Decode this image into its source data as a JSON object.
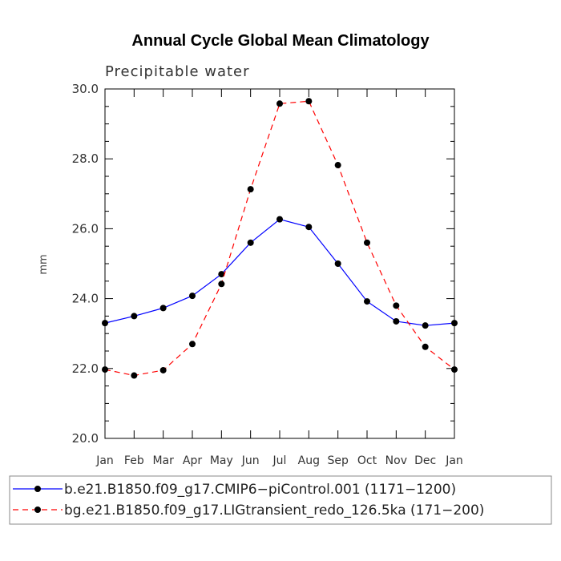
{
  "chart_data": {
    "type": "line",
    "title": "Annual Cycle Global Mean Climatology",
    "subtitle": "Precipitable water",
    "ylabel": "mm",
    "xlabel": "",
    "ylim": [
      20.0,
      30.0
    ],
    "ytick_values": [
      20.0,
      22.0,
      24.0,
      26.0,
      28.0,
      30.0
    ],
    "ytick_labels": [
      "20.0",
      "22.0",
      "24.0",
      "26.0",
      "28.0",
      "30.0"
    ],
    "categories": [
      "Jan",
      "Feb",
      "Mar",
      "Apr",
      "May",
      "Jun",
      "Jul",
      "Aug",
      "Sep",
      "Oct",
      "Nov",
      "Dec",
      "Jan"
    ],
    "series": [
      {
        "name": "b.e21.B1850.f09_g17.CMIP6−piControl.001 (1171−1200)",
        "color": "#0000ff",
        "dash": "solid",
        "values": [
          23.3,
          23.5,
          23.73,
          24.08,
          24.7,
          25.6,
          26.27,
          26.05,
          25.0,
          23.92,
          23.35,
          23.23,
          23.3
        ]
      },
      {
        "name": "bg.e21.B1850.f09_g17.LIGtransient_redo_126.5ka (171−200)",
        "color": "#ff0000",
        "dash": "dashed",
        "values": [
          21.97,
          21.8,
          21.95,
          22.7,
          24.42,
          27.13,
          29.58,
          29.65,
          27.82,
          25.6,
          23.8,
          22.62,
          21.97
        ]
      }
    ],
    "legend_position": "bottom"
  }
}
